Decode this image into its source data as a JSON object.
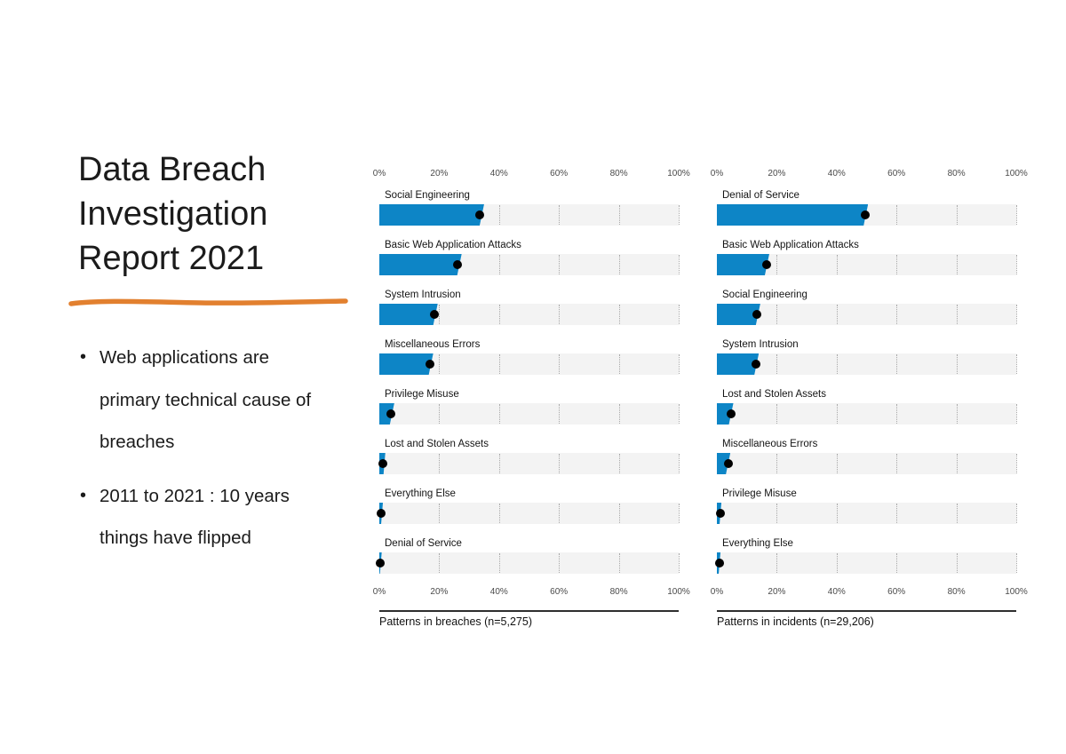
{
  "slide": {
    "title": "Data Breach\nInvestigation\nReport 2021",
    "accent_color": "#E2802F",
    "bullet_glyph": "•",
    "bullets": [
      "Web applications are\nprimary technical cause of\nbreaches",
      "2011 to 2021 : 10 years\nthings have flipped"
    ]
  },
  "chart_data": [
    {
      "type": "bar",
      "orientation": "horizontal",
      "caption": "Patterns in breaches (n=5,275)",
      "x_ticks": [
        "0%",
        "20%",
        "40%",
        "60%",
        "80%",
        "100%"
      ],
      "xlim": [
        0,
        100
      ],
      "grid": "dotted-vertical",
      "bar_color": "#0D85C6",
      "dot_color": "#000000",
      "track_color": "#f3f3f3",
      "categories": [
        "Social Engineering",
        "Basic Web Application Attacks",
        "System Intrusion",
        "Miscellaneous Errors",
        "Privilege Misuse",
        "Lost and Stolen Assets",
        "Everything Else",
        "Denial of Service"
      ],
      "values": [
        33.5,
        26,
        18.5,
        17,
        4,
        1.3,
        0.7,
        0.4
      ],
      "bar_extents": [
        35,
        27.5,
        19.5,
        18,
        5,
        2,
        1.2,
        0.8
      ]
    },
    {
      "type": "bar",
      "orientation": "horizontal",
      "caption": "Patterns in incidents (n=29,206)",
      "x_ticks": [
        "0%",
        "20%",
        "40%",
        "60%",
        "80%",
        "100%"
      ],
      "xlim": [
        0,
        100
      ],
      "grid": "dotted-vertical",
      "bar_color": "#0D85C6",
      "dot_color": "#000000",
      "track_color": "#f3f3f3",
      "categories": [
        "Denial of Service",
        "Basic Web Application Attacks",
        "Social Engineering",
        "System Intrusion",
        "Lost and Stolen Assets",
        "Miscellaneous Errors",
        "Privilege Misuse",
        "Everything Else"
      ],
      "values": [
        49.5,
        16.5,
        13.5,
        13,
        4.8,
        3.8,
        1.1,
        0.8
      ],
      "bar_extents": [
        50.5,
        17.5,
        14.5,
        14,
        5.5,
        4.5,
        1.5,
        1.2
      ]
    }
  ]
}
